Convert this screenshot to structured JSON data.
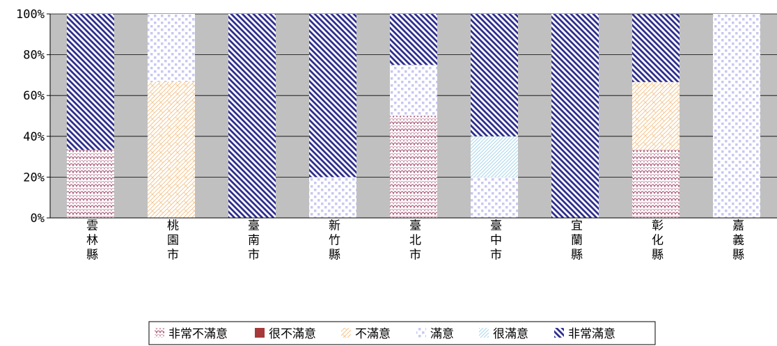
{
  "chart_data": {
    "type": "bar",
    "stacked": true,
    "percent_stacked": true,
    "categories": [
      "雲林縣",
      "桃園市",
      "臺南市",
      "新竹縣",
      "臺北市",
      "臺中市",
      "宜蘭縣",
      "彰化縣",
      "嘉義縣"
    ],
    "series": [
      {
        "name": "非常不滿意",
        "color": "#a0486a",
        "pattern": "scallop",
        "values": [
          33.3,
          0,
          0,
          0,
          50,
          0,
          0,
          33.3,
          0
        ]
      },
      {
        "name": "很不滿意",
        "color": "#a63a3a",
        "pattern": "solid",
        "values": [
          0,
          0,
          0,
          0,
          0,
          0,
          0,
          0,
          0
        ]
      },
      {
        "name": "不滿意",
        "color": "#f5c690",
        "pattern": "brick",
        "values": [
          0,
          66.7,
          0,
          0,
          0,
          0,
          0,
          33.3,
          0
        ]
      },
      {
        "name": "滿意",
        "color": "#c8c8f2",
        "pattern": "checker",
        "values": [
          0,
          33.3,
          0,
          20,
          25,
          20,
          0,
          0,
          100
        ]
      },
      {
        "name": "很滿意",
        "color": "#a8d6ec",
        "pattern": "diagonal-light",
        "values": [
          0,
          0,
          0,
          0,
          0,
          20,
          0,
          0,
          0
        ]
      },
      {
        "name": "非常滿意",
        "color": "#2e2e8e",
        "pattern": "diagonal-dark",
        "values": [
          66.7,
          0,
          100,
          80,
          25,
          60,
          100,
          33.3,
          0
        ]
      }
    ],
    "y_ticks": [
      "0%",
      "20%",
      "40%",
      "60%",
      "80%",
      "100%"
    ],
    "ylim": [
      0,
      100
    ],
    "grid": true,
    "plot_background": "#c0c0c0",
    "legend_position": "bottom"
  }
}
